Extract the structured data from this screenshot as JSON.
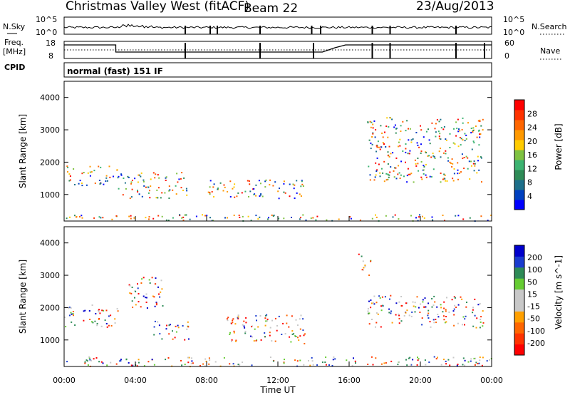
{
  "header": {
    "station": "Christmas Valley West (fitACF)",
    "beam": "Beam 22",
    "date": "23/Aug/2013"
  },
  "panels": {
    "nsky": {
      "label": "N.Sky",
      "tick_top": "10^5",
      "tick_bottom": "10^0",
      "right_label": "N.Search",
      "right_tick_top": "10^5",
      "right_tick_bottom": "10^0"
    },
    "freq": {
      "label_line1": "Freq.",
      "label_line2": "[MHz]",
      "tick_top": "18",
      "tick_bottom": "8",
      "right_label": "Nave",
      "right_tick_top": "60",
      "right_tick_bottom": "0"
    },
    "cpid": {
      "label": "CPID",
      "mode": "normal (fast) 151 IF"
    }
  },
  "colors": {
    "power": [
      "#0000ff",
      "#0040c0",
      "#1d6f8a",
      "#2e8b57",
      "#3cb371",
      "#7fc241",
      "#ffcc00",
      "#ff9900",
      "#ff6600",
      "#ff3300",
      "#ff0000"
    ],
    "velocity": [
      "#0000cc",
      "#1a3ccf",
      "#2e8b57",
      "#66cc33",
      "#c8c8c8",
      "#c8c8c8",
      "#ffa000",
      "#ff6600",
      "#ff3300",
      "#ff0000"
    ]
  },
  "chart_data": [
    {
      "type": "heatmap",
      "title": "",
      "xlabel": "",
      "ylabel": "Slant Range [km]",
      "xlim": [
        0,
        24
      ],
      "ylim": [
        180,
        4500
      ],
      "x_ticks": [
        "00:00",
        "04:00",
        "08:00",
        "12:00",
        "16:00",
        "20:00",
        "00:00"
      ],
      "y_ticks": [
        1000,
        2000,
        3000,
        4000
      ],
      "colorbar": {
        "label": "Power [dB]",
        "ticks": [
          4,
          8,
          12,
          16,
          20,
          24,
          28
        ],
        "range": [
          0,
          30
        ]
      },
      "echo_regions": [
        {
          "t": [
            0,
            3
          ],
          "range_km": [
            1300,
            1900
          ],
          "level": "24-28 dB core"
        },
        {
          "t": [
            3,
            7
          ],
          "range_km": [
            900,
            1700
          ],
          "level": "16-24 dB"
        },
        {
          "t": [
            8,
            13.5
          ],
          "range_km": [
            900,
            1500
          ],
          "level": "8-16 dB"
        },
        {
          "t": [
            17,
            23.5
          ],
          "range_km": [
            1400,
            3400
          ],
          "level": "4-16 dB"
        },
        {
          "t": [
            0,
            24
          ],
          "range_km": [
            200,
            400
          ],
          "level": "4-8 dB ground scatter"
        }
      ]
    },
    {
      "type": "heatmap",
      "title": "",
      "xlabel": "Time UT",
      "ylabel": "Slant Range [km]",
      "xlim": [
        0,
        24
      ],
      "ylim": [
        180,
        4500
      ],
      "x_ticks": [
        "00:00",
        "04:00",
        "08:00",
        "12:00",
        "16:00",
        "20:00",
        "00:00"
      ],
      "y_ticks": [
        1000,
        2000,
        3000,
        4000
      ],
      "colorbar": {
        "label": "Velocity [m s^-1]",
        "ticks": [
          "200",
          "100",
          "50",
          "15",
          "-15",
          "-50",
          "-100",
          "-200"
        ],
        "range": [
          -250,
          250
        ]
      },
      "echo_regions": [
        {
          "t": [
            0,
            3
          ],
          "range_km": [
            1400,
            2100
          ],
          "level": "-15..15 (grey) with -50 edges"
        },
        {
          "t": [
            3.5,
            5.5
          ],
          "range_km": [
            2000,
            3000
          ],
          "level": "100-200"
        },
        {
          "t": [
            5,
            7
          ],
          "range_km": [
            1000,
            1600
          ],
          "level": "-200..-100"
        },
        {
          "t": [
            9,
            13.5
          ],
          "range_km": [
            900,
            1800
          ],
          "level": "15-50"
        },
        {
          "t": [
            16.5,
            17.2
          ],
          "range_km": [
            3000,
            3700
          ],
          "level": "-200"
        },
        {
          "t": [
            17,
            23.5
          ],
          "range_km": [
            1400,
            2400
          ],
          "level": "-15..15 (grey)"
        },
        {
          "t": [
            0,
            24
          ],
          "range_km": [
            200,
            500
          ],
          "level": "-50..-100"
        }
      ]
    }
  ]
}
